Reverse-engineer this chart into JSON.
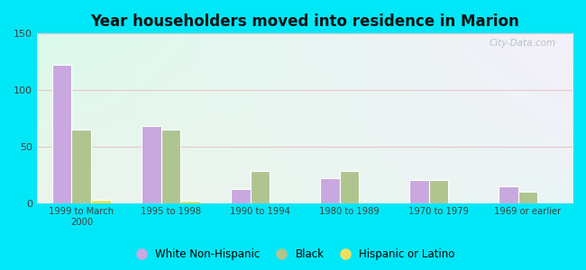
{
  "title": "Year householders moved into residence in Marion",
  "categories": [
    "1999 to March\n2000",
    "1995 to 1998",
    "1990 to 1994",
    "1980 to 1989",
    "1970 to 1979",
    "1969 or earlier"
  ],
  "white_non_hispanic": [
    122,
    68,
    12,
    22,
    20,
    15
  ],
  "black": [
    65,
    65,
    28,
    28,
    20,
    10
  ],
  "hispanic_or_latino": [
    3,
    2,
    0,
    0,
    0,
    0
  ],
  "white_color": "#c9a8e0",
  "black_color": "#b0c490",
  "hispanic_color": "#f0e060",
  "ylim": [
    0,
    150
  ],
  "yticks": [
    0,
    50,
    100,
    150
  ],
  "background_outer": "#00e8f8",
  "watermark": "City-Data.com",
  "legend_labels": [
    "White Non-Hispanic",
    "Black",
    "Hispanic or Latino"
  ]
}
